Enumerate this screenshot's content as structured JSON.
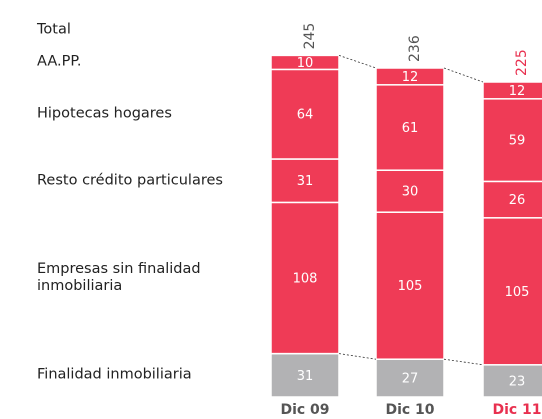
{
  "chart_data": {
    "type": "stacked_bar",
    "total_label": "Total",
    "categories": [
      "Dic 09",
      "Dic 10",
      "Dic 11"
    ],
    "totals": [
      245,
      236,
      225
    ],
    "highlight_color": "#e8304f",
    "highlight_category": 2,
    "series": [
      {
        "name": "Finalidad inmobiliaria",
        "color": "#b2b2b4",
        "values": [
          31,
          27,
          23
        ]
      },
      {
        "name": "Empresas sin finalidad inmobiliaria",
        "color": "#ef3b56",
        "values": [
          108,
          105,
          105
        ]
      },
      {
        "name": "Resto crédito particulares",
        "color": "#ef3b56",
        "values": [
          31,
          30,
          26
        ]
      },
      {
        "name": "Hipotecas hogares",
        "color": "#ef3b56",
        "values": [
          64,
          61,
          59
        ]
      },
      {
        "name": "AA.PP.",
        "color": "#ef3b56",
        "values": [
          10,
          12,
          12
        ]
      }
    ]
  }
}
